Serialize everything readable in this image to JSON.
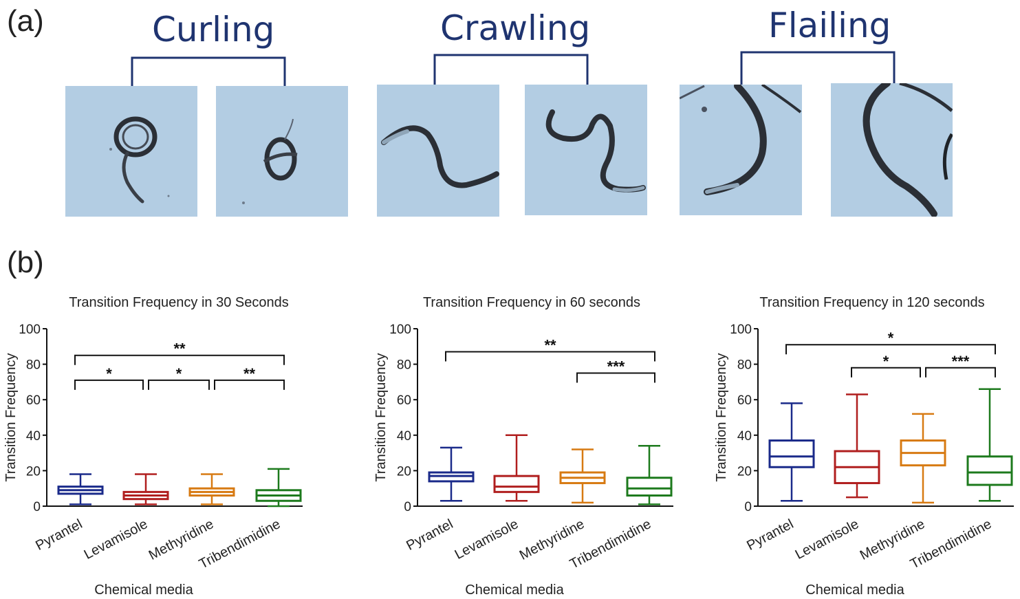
{
  "panel_a": {
    "label": "(a)",
    "behaviors": [
      {
        "name": "Curling"
      },
      {
        "name": "Crawling"
      },
      {
        "name": "Flailing"
      }
    ],
    "colors": {
      "title": "#1f3470",
      "photo_bg": "#b3cde3",
      "worm": "#2b2f36"
    }
  },
  "panel_b": {
    "label": "(b)"
  },
  "chart_data": [
    {
      "type": "boxplot",
      "title": "Transition Frequency in 30 Seconds",
      "xlabel": "Chemical media",
      "ylabel": "Transition Frequency",
      "ylim": [
        0,
        100
      ],
      "yticks": [
        "0",
        "20",
        "40",
        "60",
        "80",
        "100"
      ],
      "categories": [
        "Pyrantel",
        "Levamisole",
        "Methyridine",
        "Tribendimidine"
      ],
      "colors": [
        "#1a2a8a",
        "#b01e1e",
        "#d77a12",
        "#1d7a1d"
      ],
      "boxes": [
        {
          "min": 1,
          "q1": 7,
          "median": 9,
          "q3": 11,
          "max": 18
        },
        {
          "min": 1,
          "q1": 4,
          "median": 6,
          "q3": 8,
          "max": 18
        },
        {
          "min": 1,
          "q1": 6,
          "median": 8,
          "q3": 10,
          "max": 18
        },
        {
          "min": 0,
          "q1": 3,
          "median": 6,
          "q3": 9,
          "max": 21
        }
      ],
      "significance": [
        {
          "from": 0,
          "to": 3,
          "y": 85,
          "label": "**"
        },
        {
          "from": 0,
          "to": 1,
          "y": 71,
          "label": "*"
        },
        {
          "from": 1,
          "to": 2,
          "y": 71,
          "label": "*"
        },
        {
          "from": 2,
          "to": 3,
          "y": 71,
          "label": "**"
        }
      ]
    },
    {
      "type": "boxplot",
      "title": "Transition Frequency in 60 seconds",
      "xlabel": "Chemical media",
      "ylabel": "Transition Frequency",
      "ylim": [
        0,
        100
      ],
      "yticks": [
        "0",
        "20",
        "40",
        "60",
        "80",
        "100"
      ],
      "categories": [
        "Pyrantel",
        "Levamisole",
        "Methyridine",
        "Tribendimidine"
      ],
      "colors": [
        "#1a2a8a",
        "#b01e1e",
        "#d77a12",
        "#1d7a1d"
      ],
      "boxes": [
        {
          "min": 3,
          "q1": 14,
          "median": 17,
          "q3": 19,
          "max": 33
        },
        {
          "min": 3,
          "q1": 8,
          "median": 11,
          "q3": 17,
          "max": 40
        },
        {
          "min": 2,
          "q1": 13,
          "median": 16,
          "q3": 19,
          "max": 32
        },
        {
          "min": 1,
          "q1": 6,
          "median": 10,
          "q3": 16,
          "max": 34
        }
      ],
      "significance": [
        {
          "from": 0,
          "to": 3,
          "y": 87,
          "label": "**"
        },
        {
          "from": 2,
          "to": 3,
          "y": 75,
          "label": "***"
        }
      ]
    },
    {
      "type": "boxplot",
      "title": "Transition Frequency in 120 seconds",
      "xlabel": "Chemical media",
      "ylabel": "Transition Frequency",
      "ylim": [
        0,
        100
      ],
      "yticks": [
        "0",
        "20",
        "40",
        "60",
        "80",
        "100"
      ],
      "categories": [
        "Pyrantel",
        "Levamisole",
        "Methyridine",
        "Tribendimidine"
      ],
      "colors": [
        "#1a2a8a",
        "#b01e1e",
        "#d77a12",
        "#1d7a1d"
      ],
      "boxes": [
        {
          "min": 3,
          "q1": 22,
          "median": 28,
          "q3": 37,
          "max": 58
        },
        {
          "min": 5,
          "q1": 13,
          "median": 22,
          "q3": 31,
          "max": 63
        },
        {
          "min": 2,
          "q1": 23,
          "median": 30,
          "q3": 37,
          "max": 52
        },
        {
          "min": 3,
          "q1": 12,
          "median": 19,
          "q3": 28,
          "max": 66
        }
      ],
      "significance": [
        {
          "from": 0,
          "to": 3,
          "y": 91,
          "label": "*"
        },
        {
          "from": 1,
          "to": 2,
          "y": 78,
          "label": "*"
        },
        {
          "from": 2,
          "to": 3,
          "y": 78,
          "label": "***"
        }
      ]
    }
  ]
}
